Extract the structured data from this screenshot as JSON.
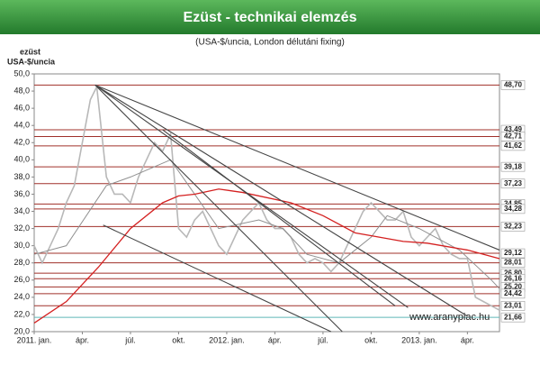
{
  "chart_data": {
    "type": "line",
    "title": "Ezüst - technikai elemzés",
    "subtitle": "(USA-$/uncia, London délutáni fixing)",
    "y_label": [
      "ezüst",
      "USA-$/uncia"
    ],
    "annotation": "www.aranypiac.hu",
    "xlim": [
      0,
      29
    ],
    "xticks": [
      {
        "value": 0,
        "label": "2011. jan."
      },
      {
        "value": 3,
        "label": "ápr."
      },
      {
        "value": 6,
        "label": "júl."
      },
      {
        "value": 9,
        "label": "okt."
      },
      {
        "value": 12,
        "label": "2012. jan."
      },
      {
        "value": 15,
        "label": "ápr."
      },
      {
        "value": 18,
        "label": "júl."
      },
      {
        "value": 21,
        "label": "okt."
      },
      {
        "value": 24,
        "label": "2013. jan."
      },
      {
        "value": 27,
        "label": "ápr."
      }
    ],
    "ylim": [
      20,
      50
    ],
    "yticks": [
      {
        "value": 20,
        "label": "20,0"
      },
      {
        "value": 22,
        "label": "22,0"
      },
      {
        "value": 24,
        "label": "24,0"
      },
      {
        "value": 26,
        "label": "26,0"
      },
      {
        "value": 28,
        "label": "28,0"
      },
      {
        "value": 30,
        "label": "30,0"
      },
      {
        "value": 32,
        "label": "32,0"
      },
      {
        "value": 34,
        "label": "34,0"
      },
      {
        "value": 36,
        "label": "36,0"
      },
      {
        "value": 38,
        "label": "38,0"
      },
      {
        "value": 40,
        "label": "40,0"
      },
      {
        "value": 42,
        "label": "42,0"
      },
      {
        "value": 44,
        "label": "44,0"
      },
      {
        "value": 46,
        "label": "46,0"
      },
      {
        "value": 48,
        "label": "48,0"
      },
      {
        "value": 50,
        "label": "50,0"
      }
    ],
    "levels": [
      {
        "value": 48.7,
        "label": "48,70"
      },
      {
        "value": 43.49,
        "label": "43,49"
      },
      {
        "value": 42.71,
        "label": "42,71"
      },
      {
        "value": 41.62,
        "label": "41,62"
      },
      {
        "value": 39.18,
        "label": "39,18"
      },
      {
        "value": 37.23,
        "label": "37,23"
      },
      {
        "value": 34.85,
        "label": "34,85"
      },
      {
        "value": 34.28,
        "label": "34,28"
      },
      {
        "value": 32.23,
        "label": "32,23"
      },
      {
        "value": 29.12,
        "label": "29,12"
      },
      {
        "value": 28.01,
        "label": "28,01"
      },
      {
        "value": 26.8,
        "label": "26,80"
      },
      {
        "value": 26.16,
        "label": "26,16"
      },
      {
        "value": 25.2,
        "label": "25,20"
      },
      {
        "value": 24.42,
        "label": "24,42"
      },
      {
        "value": 23.01,
        "label": "23,01"
      },
      {
        "value": 21.66,
        "label": "21,66"
      }
    ],
    "level_color": "#a0302a",
    "support_color": "#5fb8b8",
    "series": [
      {
        "color": "#b8b8b8",
        "x": [
          0,
          0.5,
          1,
          1.5,
          2,
          2.5,
          3,
          3.5,
          3.9,
          4.5,
          5,
          5.5,
          6,
          6.5,
          7,
          7.5,
          8,
          8.5,
          9,
          9.5,
          10,
          10.5,
          11,
          11.5,
          12,
          12.5,
          13,
          13.5,
          14,
          14.5,
          15,
          15.5,
          16,
          16.5,
          17,
          17.5,
          18,
          18.5,
          19,
          19.5,
          20,
          20.5,
          21,
          21.5,
          22,
          22.5,
          23,
          23.5,
          24,
          24.5,
          25,
          25.5,
          26,
          26.5,
          27,
          27.5,
          28,
          28.5,
          29
        ],
        "values": [
          30,
          28,
          30,
          32,
          35,
          37,
          42,
          47,
          48.5,
          38,
          36,
          36,
          35,
          38,
          40,
          42,
          41,
          43,
          32,
          31,
          33,
          34,
          32,
          30,
          29,
          31,
          33,
          34,
          35,
          33,
          32,
          32,
          31,
          29,
          28,
          28.5,
          28,
          27,
          28,
          30,
          32,
          34,
          35,
          34,
          33,
          33,
          34,
          31,
          30,
          31,
          32,
          30,
          29,
          28.5,
          28.5,
          24,
          23.5,
          23,
          22.5
        ]
      },
      {
        "color": "#d42020",
        "x": [
          0,
          2,
          4,
          6,
          8,
          9,
          10,
          11.5,
          13,
          16,
          18,
          20,
          23,
          24.5,
          27,
          29
        ],
        "values": [
          21,
          23.5,
          27.5,
          32,
          35,
          35.8,
          36,
          36.6,
          36.2,
          35,
          33.5,
          31.5,
          30.5,
          30.3,
          29.5,
          28.5
        ]
      },
      {
        "color": "#909090",
        "x": [
          0,
          2,
          4.5,
          6,
          8.5,
          10,
          11.5,
          14,
          15.5,
          17,
          19,
          21,
          22,
          24,
          25,
          26.5,
          28.5,
          29
        ],
        "values": [
          29,
          30,
          37,
          38,
          40,
          36,
          32,
          33,
          32,
          29,
          28,
          31,
          33.5,
          32,
          31,
          29.5,
          26,
          25
        ]
      }
    ],
    "trend_lines": [
      {
        "color": "#444444",
        "x": [
          3.8,
          29
        ],
        "values": [
          48.7,
          29.5
        ]
      },
      {
        "color": "#444444",
        "x": [
          3.8,
          27
        ],
        "values": [
          48.7,
          21.8
        ]
      },
      {
        "color": "#444444",
        "x": [
          3.8,
          23.3
        ],
        "values": [
          48.7,
          22.8
        ]
      },
      {
        "color": "#444444",
        "x": [
          3.8,
          19.2
        ],
        "values": [
          48.7,
          20
        ]
      },
      {
        "color": "#444444",
        "x": [
          4.3,
          18.5
        ],
        "values": [
          32.4,
          20
        ]
      },
      {
        "color": "#444444",
        "x": [
          8,
          22.5
        ],
        "values": [
          43.5,
          23
        ]
      }
    ]
  }
}
